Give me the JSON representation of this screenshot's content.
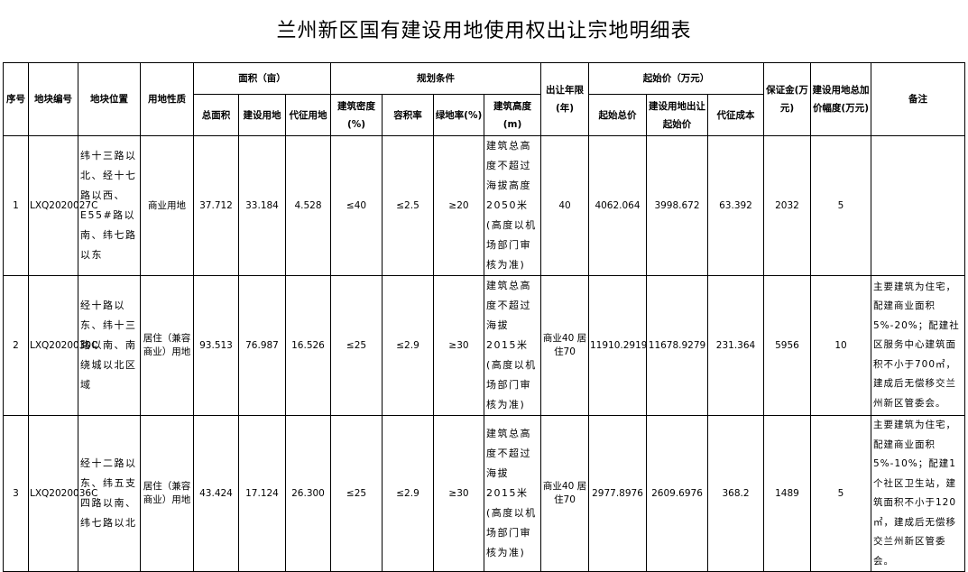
{
  "title": "兰州新区国有建设用地使用权出让宗地明细表",
  "headers": {
    "seq": "序号",
    "parcel_id": "地块编号",
    "location": "地块位置",
    "land_use": "用地性质",
    "area_group": "面积（亩）",
    "area_total": "总面积",
    "area_build": "建设用地",
    "area_acquire": "代征用地",
    "plan_group": "规划条件",
    "density": "建筑密度(%)",
    "far": "容积率",
    "green": "绿地率(%)",
    "height": "建筑高度(m)",
    "term": "出让年限(年)",
    "price_group": "起始价（万元）",
    "price_total": "起始总价",
    "price_build": "建设用地出让起始价",
    "price_acquire": "代征成本",
    "deposit": "保证金(万元)",
    "increment": "建设用地总加价幅度(万元)",
    "remarks": "备注"
  },
  "rows": [
    {
      "seq": "1",
      "parcel_id": "LXQ2020027C",
      "location": "纬十三路以北、经十七路以西、E55#路以南、纬七路以东",
      "land_use": "商业用地",
      "area_total": "37.712",
      "area_build": "33.184",
      "area_acquire": "4.528",
      "density": "≤40",
      "far": "≤2.5",
      "green": "≥20",
      "height": "建筑总高度不超过海拔高度2050米(高度以机场部门审核为准)",
      "term": "40",
      "price_total": "4062.064",
      "price_build": "3998.672",
      "price_acquire": "63.392",
      "deposit": "2032",
      "increment": "5",
      "remarks": ""
    },
    {
      "seq": "2",
      "parcel_id": "LXQ2020030C",
      "location": "经十路以东、纬十三路以南、南绕城以北区域",
      "land_use": "居住（兼容商业）用地",
      "area_total": "93.513",
      "area_build": "76.987",
      "area_acquire": "16.526",
      "density": "≤25",
      "far": "≤2.9",
      "green": "≥30",
      "height": "建筑总高度不超过海拔2015米(高度以机场部门审核为准)",
      "term": "商业40 居住70",
      "price_total": "11910.2919",
      "price_build": "11678.9279",
      "price_acquire": "231.364",
      "deposit": "5956",
      "increment": "10",
      "remarks": "主要建筑为住宅，配建商业面积5%-20%；配建社区服务中心建筑面积不小于700㎡，建成后无偿移交兰州新区管委会。"
    },
    {
      "seq": "3",
      "parcel_id": "LXQ2020036C",
      "location": "经十二路以东、纬五支四路以南、纬七路以北",
      "land_use": "居住（兼容商业）用地",
      "area_total": "43.424",
      "area_build": "17.124",
      "area_acquire": "26.300",
      "density": "≤25",
      "far": "≤2.9",
      "green": "≥30",
      "height": "建筑总高度不超过海拔2015米(高度以机场部门审核为准)",
      "term": "商业40 居住70",
      "price_total": "2977.8976",
      "price_build": "2609.6976",
      "price_acquire": "368.2",
      "deposit": "1489",
      "increment": "5",
      "remarks": "主要建筑为住宅，配建商业面积5%-10%；配建1个社区卫生站，建筑面积不小于120㎡，建成后无偿移交兰州新区管委会。"
    }
  ]
}
